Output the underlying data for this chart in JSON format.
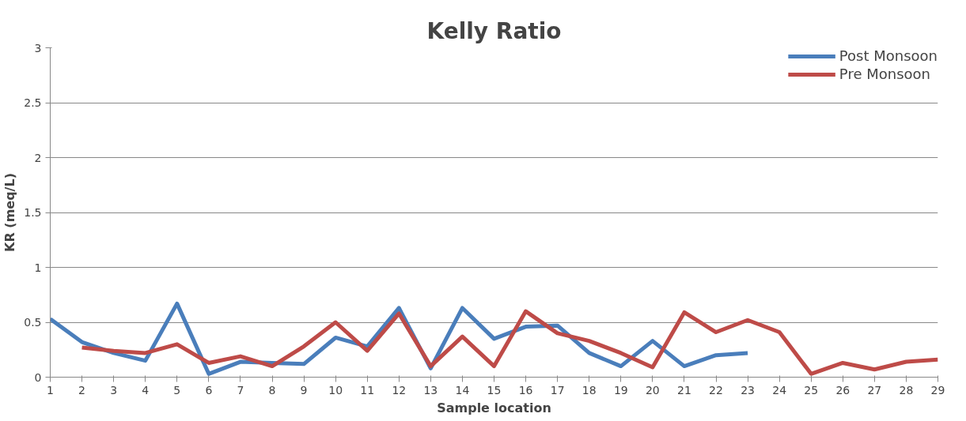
{
  "chart_data": {
    "type": "line",
    "title": "Kelly Ratio",
    "xlabel": "Sample location",
    "ylabel": "KR (meq/L)",
    "x": [
      1,
      2,
      3,
      4,
      5,
      6,
      7,
      8,
      9,
      10,
      11,
      12,
      13,
      14,
      15,
      16,
      17,
      18,
      19,
      20,
      21,
      22,
      23,
      24,
      25,
      26,
      27,
      28,
      29
    ],
    "xlim": [
      1,
      29
    ],
    "xticks": [
      1,
      2,
      3,
      4,
      5,
      6,
      7,
      8,
      9,
      10,
      11,
      12,
      13,
      14,
      15,
      16,
      17,
      18,
      19,
      20,
      21,
      22,
      23,
      24,
      25,
      26,
      27,
      28,
      29
    ],
    "series": [
      {
        "name": "Post Monsoon",
        "color": "#4a7ebb",
        "values": [
          0.53,
          0.32,
          0.22,
          0.15,
          0.67,
          0.03,
          0.14,
          0.13,
          0.12,
          0.36,
          0.28,
          0.63,
          0.08,
          0.63,
          0.35,
          0.46,
          0.47,
          0.22,
          0.1,
          0.33,
          0.1,
          0.2,
          0.22,
          null,
          null,
          null,
          null,
          null,
          null
        ]
      },
      {
        "name": "Pre Monsoon",
        "color": "#be4b48",
        "values": [
          null,
          0.27,
          0.24,
          0.22,
          0.3,
          0.13,
          0.19,
          0.1,
          0.28,
          0.5,
          0.24,
          0.58,
          0.1,
          0.37,
          0.1,
          0.6,
          0.4,
          0.33,
          0.22,
          0.09,
          0.59,
          0.41,
          0.52,
          0.41,
          0.03,
          0.13,
          0.07,
          0.14,
          0.16
        ]
      }
    ],
    "ylim": [
      0,
      3
    ],
    "yticks": [
      0,
      0.5,
      1,
      1.5,
      2,
      2.5,
      3
    ],
    "grid": "y",
    "legend": "top right",
    "line_style": "solid"
  }
}
